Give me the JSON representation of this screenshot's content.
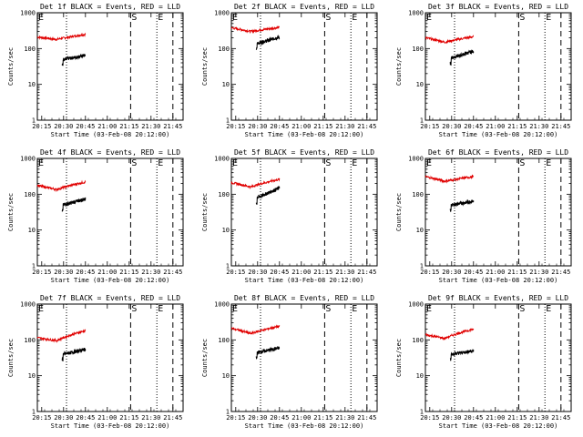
{
  "chart_data": {
    "type": "line",
    "panel_titles": [
      "Det 1f BLACK = Events, RED = LLD",
      "Det 2f BLACK = Events, RED = LLD",
      "Det 3f BLACK = Events, RED = LLD",
      "Det 4f BLACK = Events, RED = LLD",
      "Det 5f BLACK = Events, RED = LLD",
      "Det 6f BLACK = Events, RED = LLD",
      "Det 7f BLACK = Events, RED = LLD",
      "Det 8f BLACK = Events, RED = LLD",
      "Det 9f BLACK = Events, RED = LLD"
    ],
    "xlabel": "Start Time (03-Feb-08 20:12:00)",
    "ylabel": "Counts/sec",
    "x_range_min": [
      0,
      41
    ],
    "x_tick_labels": [
      "20:15",
      "20:30",
      "20:45",
      "21:00",
      "21:15",
      "21:30",
      "21:45"
    ],
    "x_tick_minutes": [
      3,
      18,
      33,
      48,
      63,
      78,
      93
    ],
    "y_scale": "log",
    "ylim": [
      1,
      1000
    ],
    "y_tick_labels": [
      "1",
      "10",
      "100",
      "1000"
    ],
    "y_tick_values": [
      1,
      10,
      100,
      1000
    ],
    "grid": false,
    "markers": [
      {
        "label": "E",
        "minute": 0,
        "style": "solid"
      },
      {
        "label": "",
        "minute": 20,
        "style": "dotted"
      },
      {
        "label": "S",
        "minute": 64,
        "style": "dashed"
      },
      {
        "label": "E",
        "minute": 82,
        "style": "dotted"
      },
      {
        "label": "",
        "minute": 93,
        "style": "dashed"
      }
    ],
    "data_minutes": [
      0,
      33
    ],
    "series": [
      {
        "values": [
          [
            210,
            180,
            250,
            50,
            45,
            65
          ],
          [
            380,
            300,
            390,
            140,
            145,
            210
          ],
          [
            200,
            150,
            215,
            55,
            50,
            85
          ]
        ],
        "colors_note": "row 1: Det 1f, 2f, 3f (LLD red start/min/end, Events black start/min/end)"
      },
      {
        "values": [
          [
            175,
            135,
            220,
            50,
            45,
            75
          ],
          [
            210,
            160,
            260,
            80,
            90,
            150
          ],
          [
            310,
            230,
            310,
            50,
            55,
            65
          ]
        ]
      },
      {
        "values": [
          [
            115,
            95,
            180,
            40,
            38,
            55
          ],
          [
            210,
            150,
            240,
            45,
            42,
            60
          ],
          [
            140,
            110,
            200,
            40,
            38,
            50
          ]
        ]
      }
    ],
    "colors": {
      "events": "#000000",
      "lld": "#e00000",
      "markers": "#000000"
    }
  }
}
